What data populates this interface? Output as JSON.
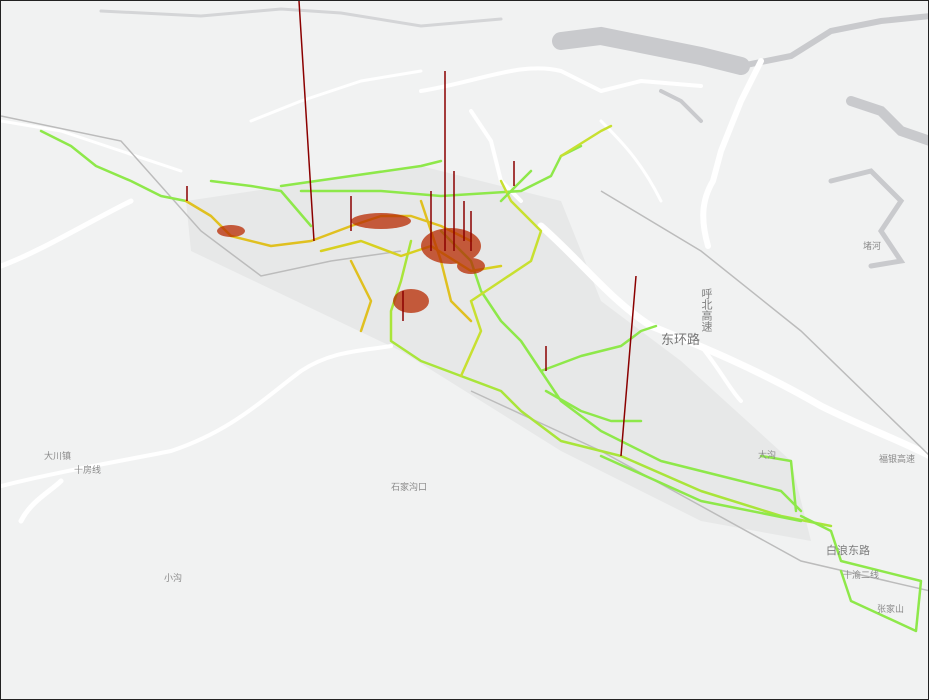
{
  "map": {
    "colors": {
      "background": "#f1f2f2",
      "road": "#ffffff",
      "water": "#c9cacd",
      "low_flow": "#8ee84a",
      "mid_flow": "#e6e62a",
      "high_flow": "#cc2200",
      "spike": "#8b0000"
    },
    "labels": {
      "east_ring_road": "东环路",
      "hubei_expressway": "呼北高速",
      "fuyin_expressway": "福银高速",
      "baihe_east_road": "白浪东路",
      "shiyu_line": "十渝二线",
      "zhangjiashan": "张家山",
      "dagou": "大沟",
      "dachuan_town": "大川镇",
      "shifang_line": "十房线",
      "xiaogou": "小沟",
      "shijiagoukou": "石家沟口",
      "river_label": "堵河"
    }
  }
}
